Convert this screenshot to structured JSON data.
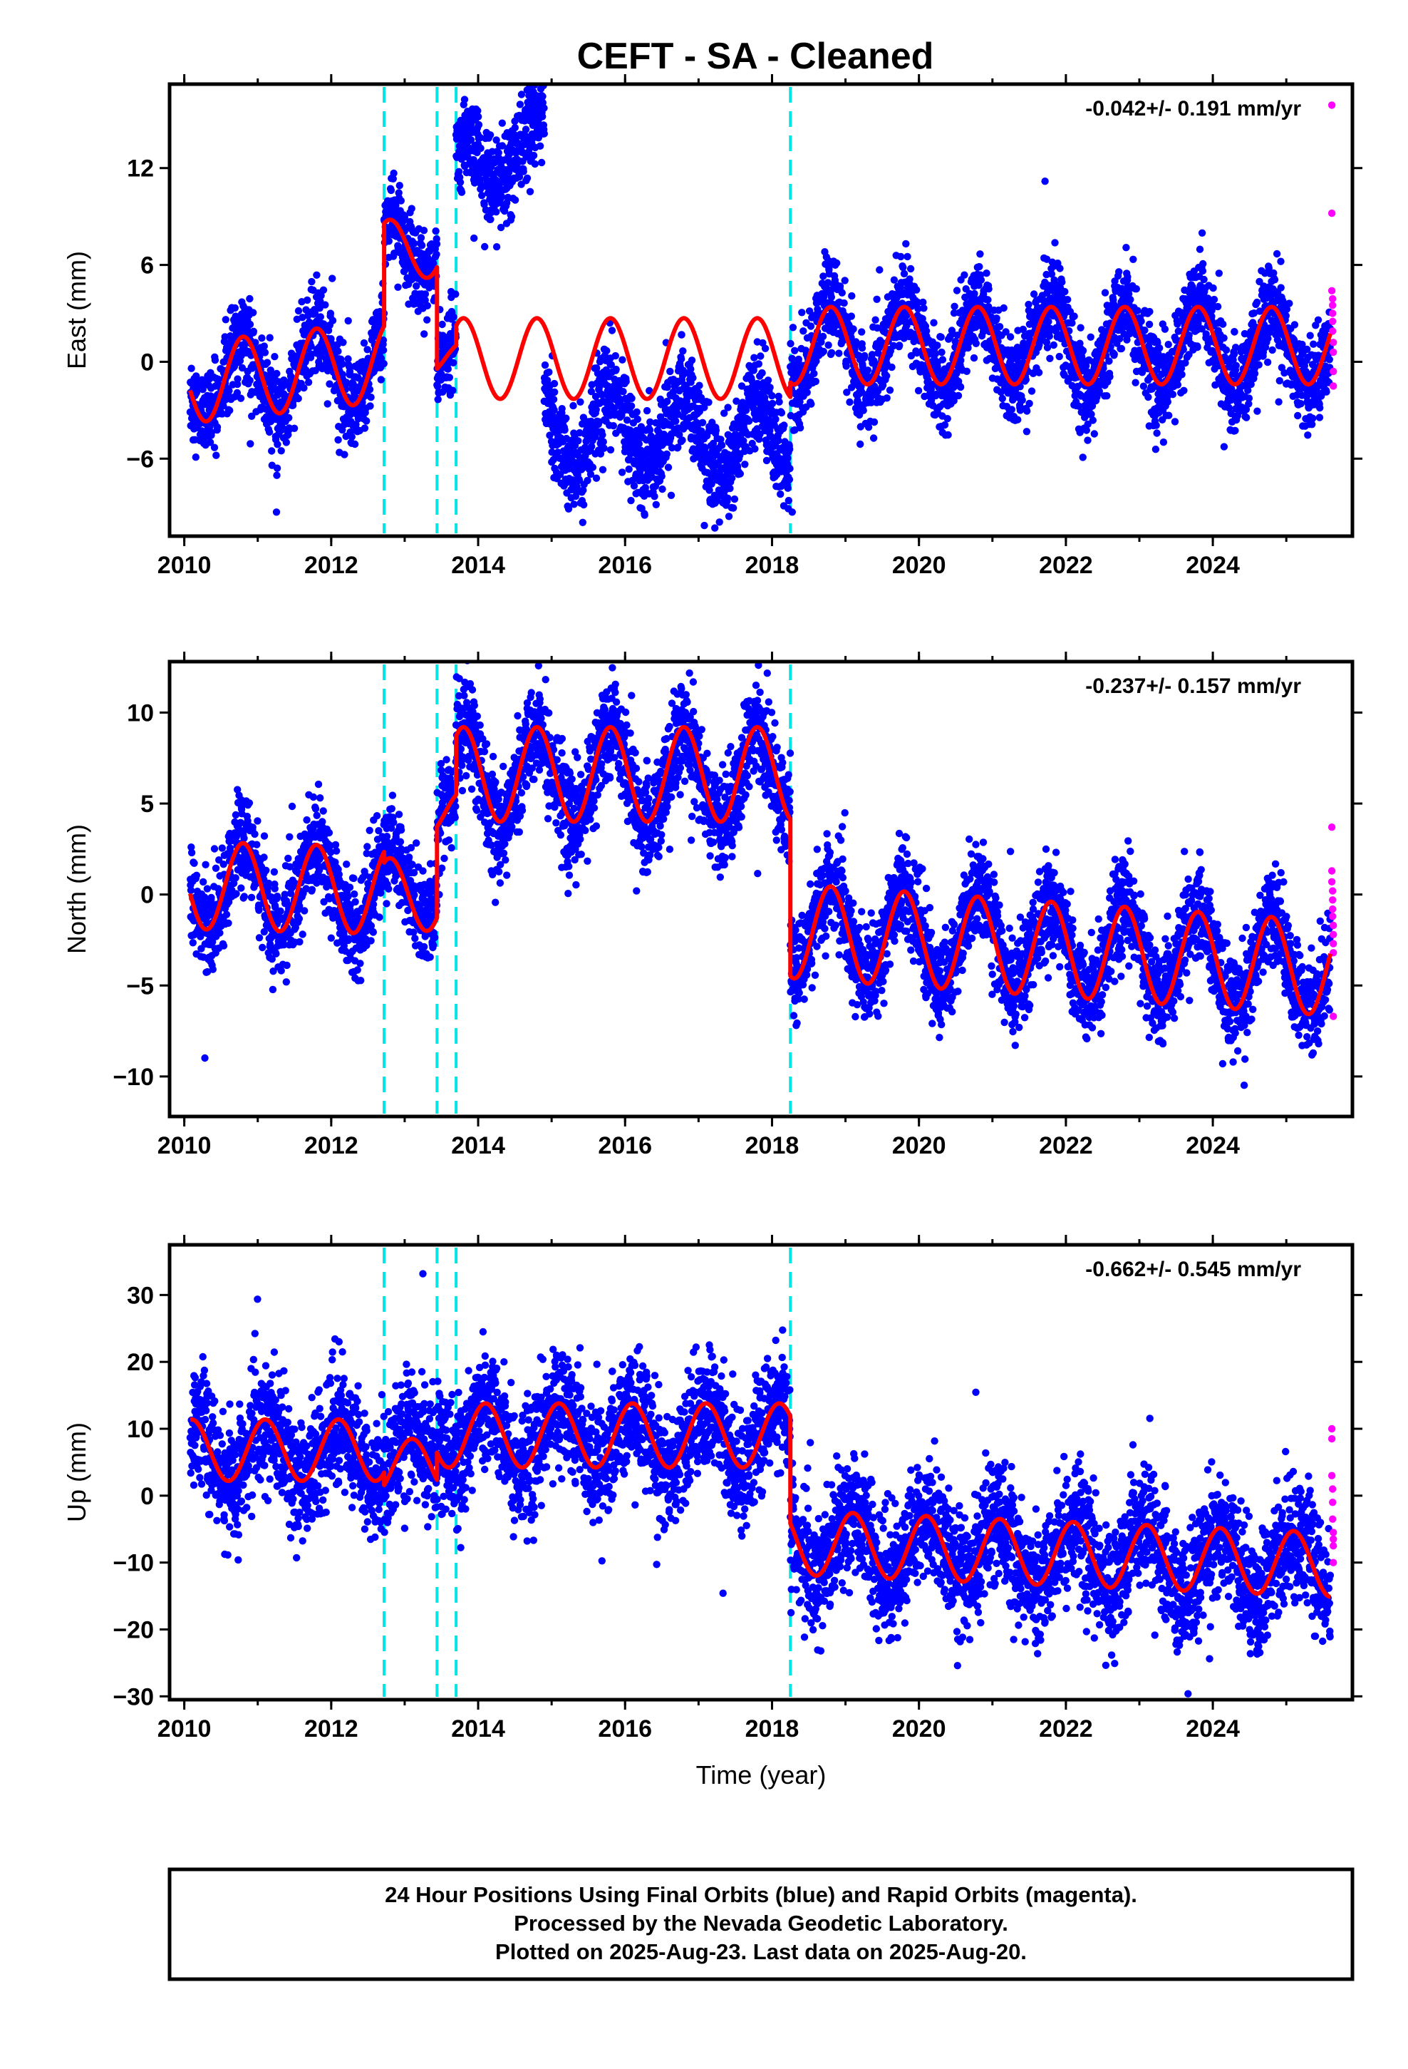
{
  "title": "CEFT  - SA - Cleaned",
  "footer": {
    "lines": [
      "24 Hour Positions Using Final Orbits (blue) and Rapid Orbits (magenta).",
      "Processed by the Nevada Geodetic Laboratory.",
      "Plotted on 2025-Aug-23. Last data on 2025-Aug-20."
    ]
  },
  "colors": {
    "final_orbits": "#0000ff",
    "rapid_orbits": "#ff00ff",
    "model_fit": "#ff0000",
    "offset_lines": "#00e5e5"
  },
  "chart_data": [
    {
      "type": "scatter",
      "component": "east",
      "ylabel": "East (mm)",
      "xlabel": "",
      "xlim": [
        2009.8,
        2025.9
      ],
      "ylim": [
        -10.8,
        17.2
      ],
      "xticks": [
        2010,
        2012,
        2014,
        2016,
        2018,
        2020,
        2022,
        2024
      ],
      "yticks": [
        -6,
        0,
        6,
        12
      ],
      "rate": "-0.042+/- 0.191 mm/yr",
      "offset_lines": [
        2012.72,
        2013.44,
        2013.7,
        2018.25
      ],
      "series": [
        {
          "color": "blue",
          "values_description": "daily positions",
          "segments": [
            {
              "start": 2010.08,
              "end": 2012.72,
              "base": -1.3,
              "trend": 0.5,
              "amp": 2.5,
              "phase": 0.55,
              "noise": 1.3
            },
            {
              "start": 2012.72,
              "end": 2013.44,
              "base": 7.0,
              "trend": 0,
              "amp": 1.8,
              "phase": 0.55,
              "noise": 1.2
            },
            {
              "start": 2013.44,
              "end": 2013.7,
              "base": 0.5,
              "trend": 0,
              "amp": 1.2,
              "phase": 0.55,
              "noise": 1.2
            },
            {
              "start": 2013.7,
              "end": 2014.9,
              "base": 11.5,
              "trend": 2.0,
              "amp": 2.0,
              "phase": 0.55,
              "noise": 1.4
            },
            {
              "start": 2014.9,
              "end": 2018.25,
              "base": -4.0,
              "trend": -0.2,
              "amp": 2.5,
              "phase": 0.55,
              "noise": 1.5
            },
            {
              "start": 2018.25,
              "end": 2025.6,
              "base": 1.0,
              "trend": 0.0,
              "amp": 2.5,
              "phase": 0.55,
              "noise": 1.4
            }
          ]
        },
        {
          "color": "magenta",
          "values_description": "rapid positions",
          "x": [
            2025.62,
            2025.62,
            2025.62,
            2025.63,
            2025.63,
            2025.63,
            2025.63,
            2025.63,
            2025.64,
            2025.64,
            2025.64,
            2025.64
          ],
          "y": [
            15.9,
            9.2,
            4.4,
            3.9,
            3.5,
            3.0,
            2.5,
            1.9,
            1.2,
            0.6,
            -0.6,
            -1.5
          ]
        }
      ],
      "model": {
        "color": "red",
        "segments": [
          {
            "start": 2010.08,
            "end": 2012.72,
            "base": -1.3,
            "trend": 0.5,
            "amp": 2.5,
            "phase": 0.55
          },
          {
            "start": 2012.72,
            "end": 2013.44,
            "base": 7.0,
            "trend": 0,
            "amp": 1.8,
            "phase": 0.55
          },
          {
            "start": 2013.44,
            "end": 2013.7,
            "base": 0.2,
            "trend": 0,
            "amp": 1.0,
            "phase": 0.55
          },
          {
            "start": 2013.7,
            "end": 2018.25,
            "base": 0.2,
            "trend": 0,
            "amp": 2.5,
            "phase": 0.55
          },
          {
            "start": 2018.25,
            "end": 2025.6,
            "base": 1.0,
            "trend": 0.0,
            "amp": 2.4,
            "phase": 0.55
          }
        ]
      }
    },
    {
      "type": "scatter",
      "component": "north",
      "ylabel": "North (mm)",
      "xlabel": "",
      "xlim": [
        2009.8,
        2025.9
      ],
      "ylim": [
        -12.2,
        12.8
      ],
      "xticks": [
        2010,
        2012,
        2014,
        2016,
        2018,
        2020,
        2022,
        2024
      ],
      "yticks": [
        -10,
        -5,
        0,
        5,
        10
      ],
      "rate": "-0.237+/- 0.157 mm/yr",
      "offset_lines": [
        2012.72,
        2013.44,
        2013.7,
        2018.25
      ],
      "series": [
        {
          "color": "blue",
          "values_description": "daily positions",
          "segments": [
            {
              "start": 2010.08,
              "end": 2012.72,
              "base": 0.5,
              "trend": -0.1,
              "amp": 2.2,
              "phase": 0.55,
              "noise": 1.3
            },
            {
              "start": 2012.72,
              "end": 2013.44,
              "base": 0.5,
              "trend": 0,
              "amp": 2.0,
              "phase": 0.55,
              "noise": 1.3
            },
            {
              "start": 2013.44,
              "end": 2013.7,
              "base": 4.5,
              "trend": 0,
              "amp": 1.5,
              "phase": 0.55,
              "noise": 1.3
            },
            {
              "start": 2013.7,
              "end": 2018.25,
              "base": 6.5,
              "trend": 0,
              "amp": 2.5,
              "phase": 0.55,
              "noise": 1.4
            },
            {
              "start": 2018.25,
              "end": 2025.6,
              "base": -1.8,
              "trend": -0.28,
              "amp": 2.6,
              "phase": 0.55,
              "noise": 1.3
            }
          ]
        },
        {
          "color": "magenta",
          "values_description": "rapid positions",
          "x": [
            2025.62,
            2025.62,
            2025.62,
            2025.63,
            2025.63,
            2025.63,
            2025.63,
            2025.64,
            2025.64,
            2025.64,
            2025.64,
            2025.64
          ],
          "y": [
            3.7,
            1.3,
            0.7,
            0.2,
            -0.3,
            -0.8,
            -1.2,
            -1.7,
            -2.2,
            -2.7,
            -3.2,
            -6.7
          ]
        }
      ],
      "model": {
        "color": "red",
        "segments": [
          {
            "start": 2010.08,
            "end": 2012.72,
            "base": 0.5,
            "trend": -0.1,
            "amp": 2.4,
            "phase": 0.55
          },
          {
            "start": 2012.72,
            "end": 2013.44,
            "base": 0.0,
            "trend": 0,
            "amp": 2.0,
            "phase": 0.55
          },
          {
            "start": 2013.44,
            "end": 2013.7,
            "base": 4.5,
            "trend": 0,
            "amp": 1.2,
            "phase": 0.55
          },
          {
            "start": 2013.7,
            "end": 2018.25,
            "base": 6.6,
            "trend": 0,
            "amp": 2.6,
            "phase": 0.55
          },
          {
            "start": 2018.25,
            "end": 2025.6,
            "base": -2.0,
            "trend": -0.28,
            "amp": 2.6,
            "phase": 0.55
          }
        ]
      }
    },
    {
      "type": "scatter",
      "component": "up",
      "ylabel": "Up (mm)",
      "xlabel": "Time (year)",
      "xlim": [
        2009.8,
        2025.9
      ],
      "ylim": [
        -30.5,
        37.5
      ],
      "xticks": [
        2010,
        2012,
        2014,
        2016,
        2018,
        2020,
        2022,
        2024
      ],
      "yticks": [
        -30,
        -20,
        -10,
        0,
        10,
        20,
        30
      ],
      "rate": "-0.662+/- 0.545 mm/yr",
      "offset_lines": [
        2012.72,
        2013.44,
        2013.7,
        2018.25
      ],
      "series": [
        {
          "color": "blue",
          "values_description": "daily positions",
          "segments": [
            {
              "start": 2010.08,
              "end": 2012.72,
              "base": 6.5,
              "trend": 0,
              "amp": 4.5,
              "phase": 0.85,
              "noise": 4.5
            },
            {
              "start": 2012.72,
              "end": 2013.44,
              "base": 5.0,
              "trend": 0,
              "amp": 4.0,
              "phase": 0.85,
              "noise": 4.5
            },
            {
              "start": 2013.44,
              "end": 2013.7,
              "base": 10.0,
              "trend": 0,
              "amp": 4.0,
              "phase": 0.85,
              "noise": 4.5
            },
            {
              "start": 2013.7,
              "end": 2018.25,
              "base": 9.0,
              "trend": 0,
              "amp": 4.8,
              "phase": 0.85,
              "noise": 4.3
            },
            {
              "start": 2018.25,
              "end": 2025.6,
              "base": -7.0,
              "trend": -0.45,
              "amp": 4.8,
              "phase": 0.85,
              "noise": 4.5
            }
          ]
        },
        {
          "color": "magenta",
          "values_description": "rapid positions",
          "x": [
            2025.62,
            2025.62,
            2025.62,
            2025.63,
            2025.63,
            2025.63,
            2025.64,
            2025.64,
            2025.64,
            2025.64
          ],
          "y": [
            10.0,
            8.5,
            3.0,
            1.0,
            -1.0,
            -3.5,
            -5.5,
            -6.5,
            -7.5,
            -10.0
          ]
        }
      ],
      "model": {
        "color": "red",
        "segments": [
          {
            "start": 2010.08,
            "end": 2012.72,
            "base": 6.8,
            "trend": 0,
            "amp": 4.6,
            "phase": 0.85
          },
          {
            "start": 2012.72,
            "end": 2013.44,
            "base": 4.5,
            "trend": 0,
            "amp": 4.0,
            "phase": 0.85
          },
          {
            "start": 2013.44,
            "end": 2018.25,
            "base": 9.0,
            "trend": 0,
            "amp": 4.8,
            "phase": 0.85
          },
          {
            "start": 2018.25,
            "end": 2025.6,
            "base": -7.0,
            "trend": -0.45,
            "amp": 4.8,
            "phase": 0.85
          }
        ]
      }
    }
  ]
}
